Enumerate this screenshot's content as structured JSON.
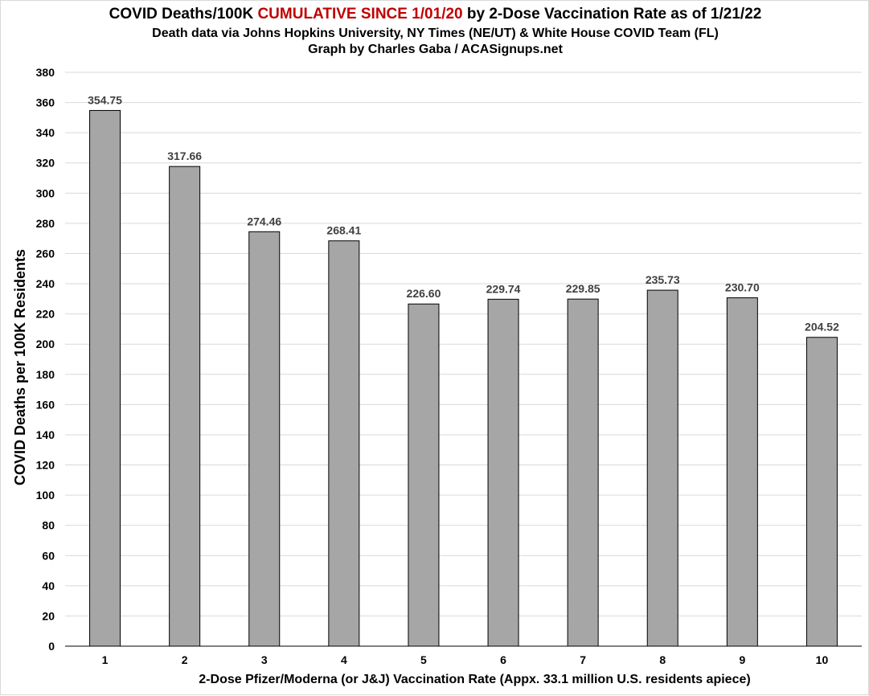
{
  "header": {
    "title_part1": "COVID Deaths/100K ",
    "title_accent": "CUMULATIVE SINCE 1/01/20",
    "title_part2": " by 2-Dose Vaccination Rate as of 1/21/22",
    "subtitle_line1": "Death data via Johns Hopkins University, NY Times (NE/UT) & White House COVID Team (FL)",
    "subtitle_line2": "Graph by Charles Gaba / ACASignups.net"
  },
  "colors": {
    "accent": "#c00000",
    "bar_fill": "#a6a6a6",
    "bar_stroke": "#000000",
    "gridline": "#d9d9d9",
    "data_label": "#404040"
  },
  "chart_data": {
    "type": "bar",
    "title": "COVID Deaths/100K CUMULATIVE SINCE 1/01/20 by 2-Dose Vaccination Rate as of 1/21/22",
    "xlabel": "2-Dose Pfizer/Moderna (or  J&J) Vaccination Rate (Appx. 33.1 million U.S. residents apiece)",
    "ylabel": "COVID Deaths per 100K Residents",
    "categories": [
      "1",
      "2",
      "3",
      "4",
      "5",
      "6",
      "7",
      "8",
      "9",
      "10"
    ],
    "values": [
      354.75,
      317.66,
      274.46,
      268.41,
      226.6,
      229.74,
      229.85,
      235.73,
      230.7,
      204.52
    ],
    "value_labels": [
      "354.75",
      "317.66",
      "274.46",
      "268.41",
      "226.60",
      "229.74",
      "229.85",
      "235.73",
      "230.70",
      "204.52"
    ],
    "ylim": [
      0,
      380
    ],
    "ytick_step": 20,
    "grid": true,
    "legend": "none"
  }
}
